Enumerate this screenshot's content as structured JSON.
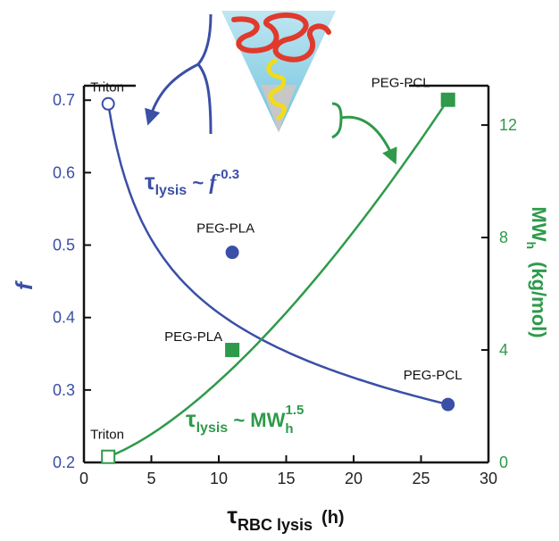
{
  "chart_data": {
    "type": "scatter",
    "x_axis": {
      "label_symbol": "τ",
      "label_subscript": "RBC lysis",
      "label_unit": "(h)",
      "range": [
        0,
        30
      ],
      "ticks": [
        "0",
        "5",
        "10",
        "15",
        "20",
        "25",
        "30"
      ]
    },
    "y_left": {
      "label": "f",
      "range": [
        0.2,
        0.72
      ],
      "ticks": [
        "0.2",
        "0.3",
        "0.4",
        "0.5",
        "0.6",
        "0.7"
      ],
      "color": "#3a4fa6"
    },
    "y_right": {
      "label_main": "MW",
      "label_subscript": "h",
      "label_unit": "(kg/mol)",
      "range": [
        0,
        13.4
      ],
      "ticks": [
        "0",
        "4",
        "8",
        "12"
      ],
      "color": "#2e9a4a"
    },
    "series": [
      {
        "axis": "left",
        "marker": "circle",
        "color": "#3a4fa6",
        "points": [
          {
            "x": 1.8,
            "y": 0.695,
            "label": "Triton",
            "filled": false
          },
          {
            "x": 11,
            "y": 0.49,
            "label": "PEG-PLA",
            "filled": true
          },
          {
            "x": 27,
            "y": 0.28,
            "label": "PEG-PCL",
            "filled": true
          }
        ],
        "fit_exponent": -0.3
      },
      {
        "axis": "right",
        "marker": "square",
        "color": "#2e9a4a",
        "points": [
          {
            "x": 1.8,
            "y": 0.2,
            "label": "Triton",
            "filled": false
          },
          {
            "x": 11,
            "y": 4.0,
            "label": "PEG-PLA",
            "filled": true
          },
          {
            "x": 27,
            "y": 12.9,
            "label": "PEG-PCL",
            "filled": true
          }
        ],
        "fit_exponent": 1.5
      }
    ],
    "annotations": {
      "blue_eq": {
        "tau": "τ",
        "sub": "lysis",
        "mid": " ~ ",
        "var": "f",
        "sup": "-0.3"
      },
      "green_eq": {
        "tau": "τ",
        "sub": "lysis",
        "mid": " ~ MW",
        "sub2": "h",
        "sup": "1.5"
      }
    }
  }
}
